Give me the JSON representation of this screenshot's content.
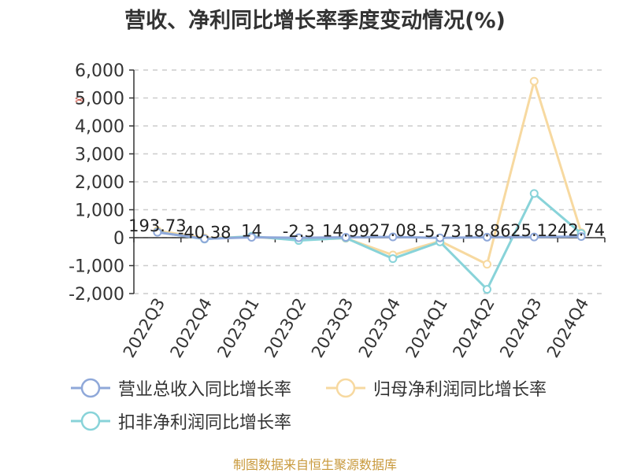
{
  "chart_data": {
    "type": "line",
    "title": "营收、净利同比增长率季度变动情况(%)",
    "categories": [
      "2022Q3",
      "2022Q4",
      "2023Q1",
      "2023Q2",
      "2023Q3",
      "2023Q4",
      "2024Q1",
      "2024Q2",
      "2024Q3",
      "2024Q4"
    ],
    "ylim": [
      -2000,
      6000
    ],
    "yticks": [
      -2000,
      -1000,
      0,
      1000,
      2000,
      3000,
      4000,
      5000,
      6000
    ],
    "ytick_labels": [
      "-2,000",
      "-1,000",
      "0",
      "1,000",
      "2,000",
      "3,000",
      "4,000",
      "5,000",
      "6,000"
    ],
    "grid": true,
    "legend_position": "bottom",
    "series": [
      {
        "name": "营业总收入同比增长率",
        "color": "#8fa8d9",
        "values": [
          193.73,
          -40.38,
          14,
          -2.3,
          14.99,
          27.08,
          -5.73,
          18.86,
          25.12,
          42.74
        ],
        "labels": [
          "193.73",
          "-40.38",
          "14",
          "-2.3",
          "14.99",
          "27.08",
          "-5.73",
          "18.86",
          "25.12",
          "42.74"
        ]
      },
      {
        "name": "归母净利润同比增长率",
        "color": "#f7d9a0",
        "values": [
          250,
          -10,
          30,
          -80,
          -20,
          -620,
          -120,
          -950,
          5600,
          180
        ]
      },
      {
        "name": "扣非净利润同比增长率",
        "color": "#88d3d9",
        "values": [
          200,
          -50,
          50,
          -100,
          -10,
          -750,
          -150,
          -1850,
          1580,
          150
        ]
      }
    ]
  },
  "source_text": "制图数据来自恒生聚源数据库",
  "cursor_glyph": "✂"
}
